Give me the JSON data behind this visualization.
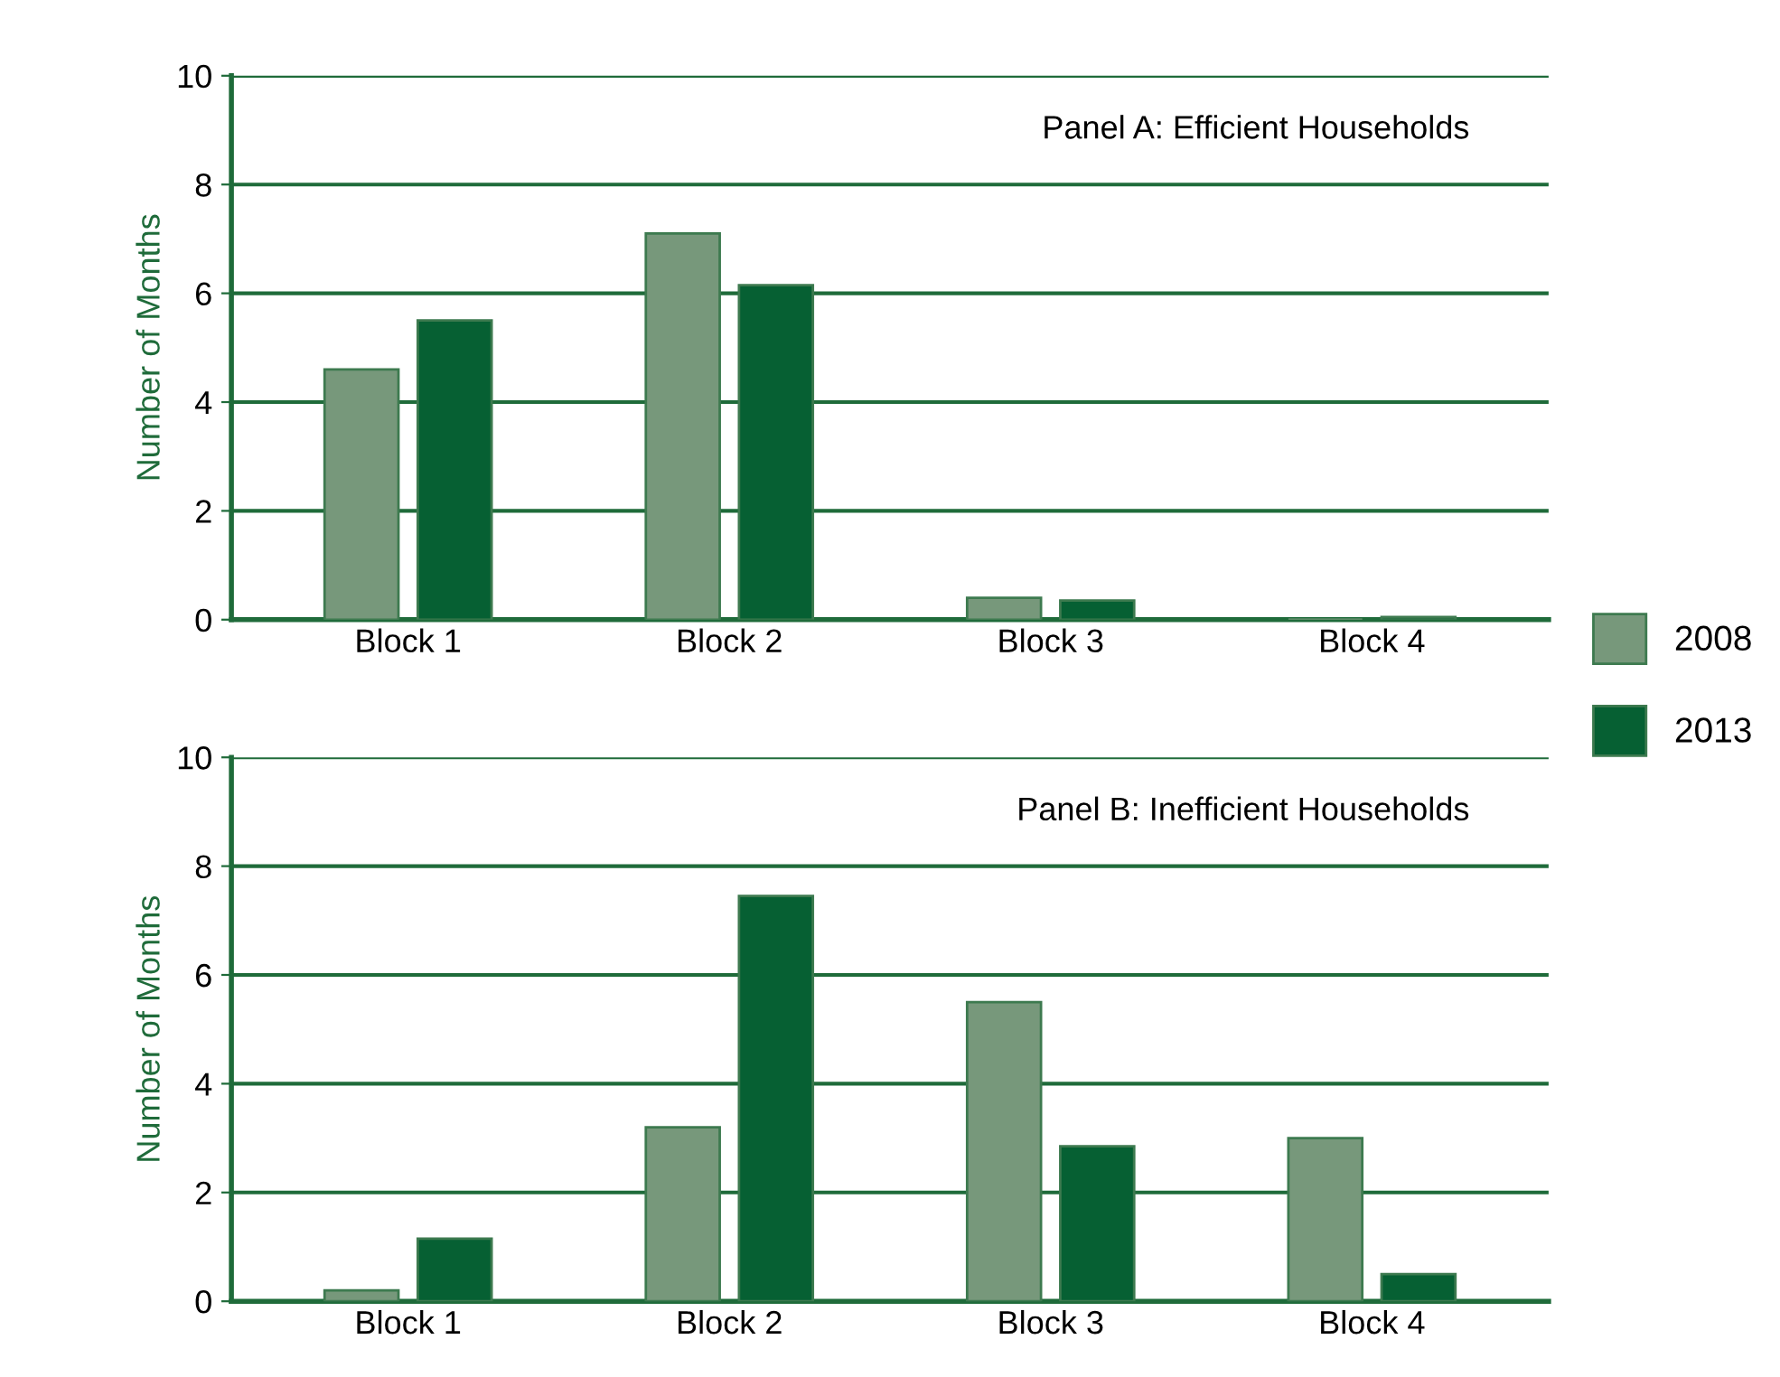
{
  "chart_data": [
    {
      "type": "bar",
      "ylabel": "Number of Months",
      "annotations": [
        "Panel A: Efficient Households"
      ],
      "categories": [
        "Block 1",
        "Block 2",
        "Block 3",
        "Block 4"
      ],
      "series": [
        {
          "name": "2008",
          "color": "#77987b",
          "values": [
            4.6,
            7.1,
            0.4,
            0
          ]
        },
        {
          "name": "2013",
          "color": "#066033",
          "values": [
            5.5,
            6.15,
            0.35,
            0.05
          ]
        }
      ],
      "ylim": [
        0,
        10
      ],
      "yticks": [
        0,
        2,
        4,
        6,
        8,
        10
      ],
      "grid": "y",
      "legend": "right"
    },
    {
      "type": "bar",
      "ylabel": "Number of Months",
      "annotations": [
        "Panel B: Inefficient Households"
      ],
      "categories": [
        "Block 1",
        "Block 2",
        "Block 3",
        "Block 4"
      ],
      "series": [
        {
          "name": "2008",
          "color": "#77987b",
          "values": [
            0.2,
            3.2,
            5.5,
            3.0
          ]
        },
        {
          "name": "2013",
          "color": "#066033",
          "values": [
            1.15,
            7.45,
            2.85,
            0.5
          ]
        }
      ],
      "ylim": [
        0,
        10
      ],
      "yticks": [
        0,
        2,
        4,
        6,
        8,
        10
      ],
      "grid": "y"
    }
  ]
}
